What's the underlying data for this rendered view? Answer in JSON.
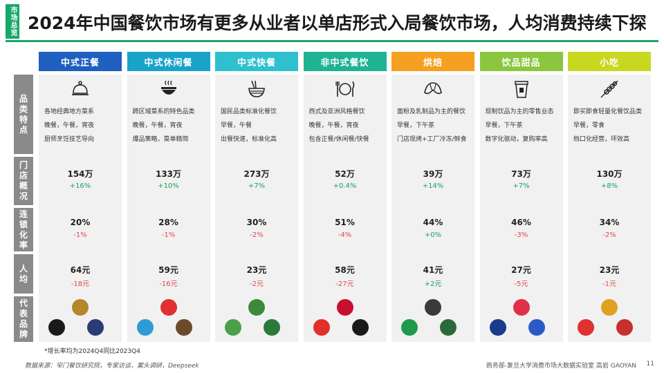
{
  "side_tag": "市场总览",
  "title": "2024年中国餐饮市场有更多从业者以单店形式入局餐饮市场，人均消费持续下探",
  "row_labels": {
    "features": "品类特点",
    "stores": "门店概况",
    "chain": "连锁化率",
    "per_capita": "人均",
    "brands": "代表品牌"
  },
  "columns": [
    {
      "name": "中式正餐",
      "color": "#1e5fbf",
      "icon": "cloche-icon",
      "desc": [
        "各地经典地方菜系",
        "晚餐，午餐，宵夜",
        "厨师烹饪技艺导向"
      ],
      "stores": "154万",
      "stores_growth": "+16%",
      "chain": "20%",
      "chain_growth": "-1%",
      "per_capita": "64元",
      "per_capita_growth": "-18元",
      "brand_logos": [
        "#b5872a",
        "#1a1a1a",
        "#2b3b73"
      ]
    },
    {
      "name": "中式休闲餐",
      "color": "#1aa3c9",
      "icon": "bowl-icon",
      "desc": [
        "跨区域菜系的特色品类",
        "晚餐，午餐，宵夜",
        "爆品策略，菜单精简"
      ],
      "stores": "133万",
      "stores_growth": "+10%",
      "chain": "28%",
      "chain_growth": "-1%",
      "per_capita": "59元",
      "per_capita_growth": "-16元",
      "brand_logos": [
        "#e03030",
        "#2e9bd6",
        "#6b4a2b"
      ]
    },
    {
      "name": "中式快餐",
      "color": "#2fc0cf",
      "icon": "noodle-icon",
      "desc": [
        "国民品类标准化餐饮",
        "早餐，午餐",
        "出餐快速，标准化高"
      ],
      "stores": "273万",
      "stores_growth": "+7%",
      "chain": "30%",
      "chain_growth": "-2%",
      "per_capita": "23元",
      "per_capita_growth": "-2元",
      "brand_logos": [
        "#3a8a3a",
        "#4aa04a",
        "#2a7a3a"
      ]
    },
    {
      "name": "非中式餐饮",
      "color": "#1fb394",
      "icon": "plate-icon",
      "desc": [
        "西式及亚洲风格餐饮",
        "晚餐，午餐，宵夜",
        "包含正餐/休闲餐/快餐"
      ],
      "stores": "52万",
      "stores_growth": "+0.4%",
      "chain": "51%",
      "chain_growth": "-4%",
      "per_capita": "58元",
      "per_capita_growth": "-27元",
      "brand_logos": [
        "#c8102e",
        "#e0302a",
        "#1a1a1a"
      ]
    },
    {
      "name": "烘焙",
      "color": "#f5a020",
      "icon": "croissant-icon",
      "desc": [
        "面粉及乳制品为主的餐饮",
        "早餐，下午茶",
        "门店现烤+工厂冷冻/鲜食"
      ],
      "stores": "39万",
      "stores_growth": "+14%",
      "chain": "44%",
      "chain_growth": "+0%",
      "per_capita": "41元",
      "per_capita_growth": "+2元",
      "brand_logos": [
        "#3a3a3a",
        "#1e9a4a",
        "#2a6a3a"
      ]
    },
    {
      "name": "饮品甜品",
      "color": "#8cc63f",
      "icon": "cup-icon",
      "desc": [
        "现制饮品为主的零售业态",
        "早餐，下午茶",
        "数字化驱动，复购率高"
      ],
      "stores": "73万",
      "stores_growth": "+7%",
      "chain": "46%",
      "chain_growth": "-3%",
      "per_capita": "27元",
      "per_capita_growth": "-5元",
      "brand_logos": [
        "#e0304a",
        "#1a3a8a",
        "#2a5ac8"
      ]
    },
    {
      "name": "小吃",
      "color": "#c8d820",
      "icon": "skewer-icon",
      "desc": [
        "即买即食轻量化餐饮品类",
        "早餐，零食",
        "档口化经营，坪效高"
      ],
      "stores": "130万",
      "stores_growth": "+8%",
      "chain": "34%",
      "chain_growth": "-2%",
      "per_capita": "23元",
      "per_capita_growth": "-1元",
      "brand_logos": [
        "#e0a020",
        "#e03030",
        "#c83030"
      ]
    }
  ],
  "footnote": "*增长率均为2024Q4同比2023Q4",
  "footer_source": "数据来源：窄门餐饮研究院，专家访谈，案头调研，Deepseek",
  "footer_org": "商务部-复旦大学消费市场大数据实验室  高岩 GAOYAN",
  "page_number": "11"
}
